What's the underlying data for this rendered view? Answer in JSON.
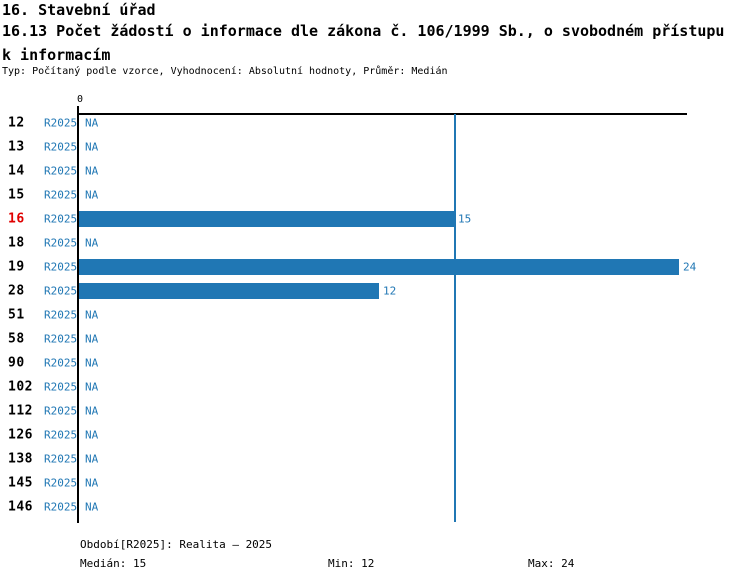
{
  "header": {
    "title": "16. Stavební úřad",
    "subtitle_line1": "16.13 Počet žádostí o informace dle zákona č. 106/1999 Sb., o svobodném přístupu",
    "subtitle_line2": "k informacím",
    "meta": "Typ: Počítaný podle vzorce, Vyhodnocení: Absolutní hodnoty, Průměr: Medián"
  },
  "chart_data": {
    "type": "bar",
    "orientation": "horizontal",
    "title": "16.13 Počet žádostí o informace dle zákona č. 106/1999 Sb., o svobodném přístupu k informacím",
    "series_name": "R2025",
    "na_label": "NA",
    "x_axis": {
      "min": 0,
      "max": 24,
      "tick_label": "0",
      "tick_value": 0
    },
    "median_value": 15,
    "min_value": 12,
    "max_value": 24,
    "bar_color": "#2077b4",
    "text_blue": "#2077b4",
    "highlight_color": "#e00000",
    "axis_color": "#000000",
    "legend_position": "none",
    "grid": false,
    "categories": [
      "12",
      "13",
      "14",
      "15",
      "16",
      "18",
      "19",
      "28",
      "51",
      "58",
      "90",
      "102",
      "112",
      "126",
      "138",
      "145",
      "146"
    ],
    "rows": [
      {
        "label": "12",
        "series": "R2025",
        "value": null,
        "highlight": false
      },
      {
        "label": "13",
        "series": "R2025",
        "value": null,
        "highlight": false
      },
      {
        "label": "14",
        "series": "R2025",
        "value": null,
        "highlight": false
      },
      {
        "label": "15",
        "series": "R2025",
        "value": null,
        "highlight": false
      },
      {
        "label": "16",
        "series": "R2025",
        "value": 15,
        "highlight": true
      },
      {
        "label": "18",
        "series": "R2025",
        "value": null,
        "highlight": false
      },
      {
        "label": "19",
        "series": "R2025",
        "value": 24,
        "highlight": false
      },
      {
        "label": "28",
        "series": "R2025",
        "value": 12,
        "highlight": false
      },
      {
        "label": "51",
        "series": "R2025",
        "value": null,
        "highlight": false
      },
      {
        "label": "58",
        "series": "R2025",
        "value": null,
        "highlight": false
      },
      {
        "label": "90",
        "series": "R2025",
        "value": null,
        "highlight": false
      },
      {
        "label": "102",
        "series": "R2025",
        "value": null,
        "highlight": false
      },
      {
        "label": "112",
        "series": "R2025",
        "value": null,
        "highlight": false
      },
      {
        "label": "126",
        "series": "R2025",
        "value": null,
        "highlight": false
      },
      {
        "label": "138",
        "series": "R2025",
        "value": null,
        "highlight": false
      },
      {
        "label": "145",
        "series": "R2025",
        "value": null,
        "highlight": false
      },
      {
        "label": "146",
        "series": "R2025",
        "value": null,
        "highlight": false
      }
    ]
  },
  "footer": {
    "period": "Období[R2025]: Realita – 2025",
    "median": "Medián: 15",
    "min": "Min: 12",
    "max": "Max: 24"
  }
}
